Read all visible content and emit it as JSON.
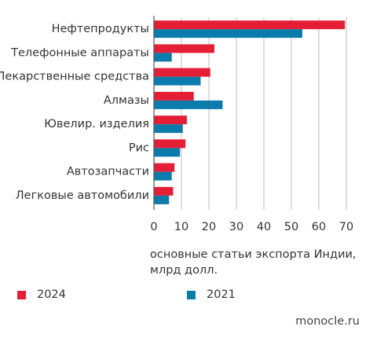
{
  "chart_data": {
    "type": "bar",
    "orientation": "horizontal",
    "categories": [
      "Нефтепродукты",
      "Телефонные аппараты",
      "Лекарственные средства",
      "Алмазы",
      "Ювелир. изделия",
      "Рис",
      "Автозапчасти",
      "Легковые автомобили"
    ],
    "series": [
      {
        "name": "2024",
        "color": "#e41f35",
        "values": [
          69.5,
          22,
          20.5,
          14.5,
          12,
          11.5,
          7.5,
          7
        ]
      },
      {
        "name": "2021",
        "color": "#0b7bab",
        "values": [
          54,
          6.5,
          17,
          25,
          10.5,
          9.5,
          6.5,
          5.5
        ]
      }
    ],
    "xticks": [
      "0",
      "10",
      "20",
      "30",
      "40",
      "50",
      "60",
      "70"
    ],
    "xlim": [
      0,
      70
    ],
    "grid": true,
    "grid_color": "#bdbdbd",
    "legend_position": "bottom"
  },
  "note": "основные статьи экспорта Индии, млрд долл.",
  "source": "monocle.ru"
}
